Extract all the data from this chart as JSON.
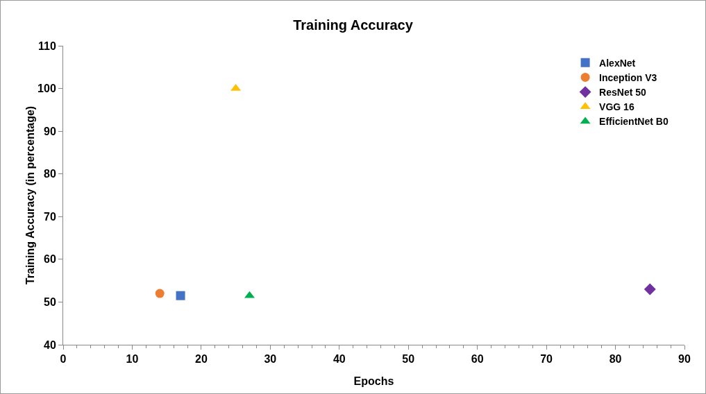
{
  "chart_data": {
    "type": "scatter",
    "title": "Training Accuracy",
    "xlabel": "Epochs",
    "ylabel": "Training Accuracy (in percentage)",
    "xlim": [
      0,
      90
    ],
    "xticks": [
      0,
      10,
      20,
      30,
      40,
      50,
      60,
      70,
      80,
      90
    ],
    "ylim": [
      40,
      110
    ],
    "yticks": [
      40,
      50,
      60,
      70,
      80,
      90,
      100,
      110
    ],
    "grid": false,
    "legend": "top right",
    "series": [
      {
        "name": "AlexNet",
        "color": "#4472c4",
        "marker": "square",
        "x": [
          17
        ],
        "values": [
          51.5
        ]
      },
      {
        "name": "Inception V3",
        "color": "#ed7d31",
        "marker": "circle",
        "x": [
          14
        ],
        "values": [
          52
        ]
      },
      {
        "name": "ResNet 50",
        "color": "#7030a0",
        "marker": "diamond",
        "x": [
          85
        ],
        "values": [
          53
        ]
      },
      {
        "name": "VGG 16",
        "color": "#ffc000",
        "marker": "triangle",
        "x": [
          25
        ],
        "values": [
          100
        ]
      },
      {
        "name": "EfficientNet B0",
        "color": "#00b050",
        "marker": "triangle",
        "x": [
          27
        ],
        "values": [
          51.5
        ]
      }
    ]
  }
}
